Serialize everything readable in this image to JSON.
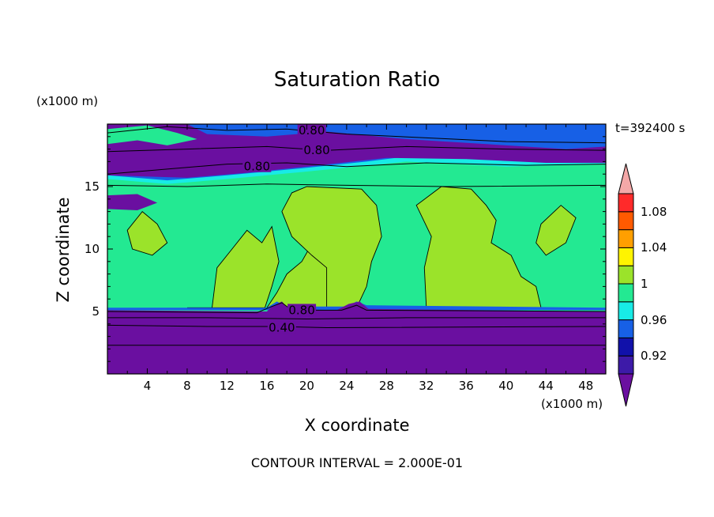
{
  "chart_data": {
    "type": "contour",
    "title": "Saturation Ratio",
    "xlabel": "X coordinate",
    "ylabel": "Z coordinate",
    "x_units": "(x1000 m)",
    "z_units": "(x1000 m)",
    "time_label": "t=392400 s",
    "footer": "CONTOUR INTERVAL = 2.000E-01",
    "xlim": [
      0,
      50
    ],
    "ylim": [
      0,
      20
    ],
    "x_ticks": [
      "4",
      "8",
      "12",
      "16",
      "20",
      "24",
      "28",
      "32",
      "36",
      "40",
      "44",
      "48"
    ],
    "y_ticks": [
      "5",
      "10",
      "15"
    ],
    "contour_labels": [
      {
        "text": "0.80",
        "x": 20.5,
        "z": 19.5
      },
      {
        "text": "0.80",
        "x": 21.0,
        "z": 17.9
      },
      {
        "text": "0.80",
        "x": 15.0,
        "z": 16.6
      },
      {
        "text": "0.80",
        "x": 19.5,
        "z": 5.1
      },
      {
        "text": "0.40",
        "x": 17.5,
        "z": 3.7
      }
    ],
    "colorbar": {
      "labels": [
        "1.08",
        "1.04",
        "1",
        "0.96",
        "0.92"
      ],
      "levels": [
        {
          "from": null,
          "to": 0.9,
          "color": "#6a0fa0"
        },
        {
          "from": 0.9,
          "to": 0.92,
          "color": "#3d1aa8"
        },
        {
          "from": 0.92,
          "to": 0.94,
          "color": "#1111aa"
        },
        {
          "from": 0.94,
          "to": 0.96,
          "color": "#1760e6"
        },
        {
          "from": 0.96,
          "to": 0.98,
          "color": "#18ebe6"
        },
        {
          "from": 0.98,
          "to": 1.0,
          "color": "#23e992"
        },
        {
          "from": 1.0,
          "to": 1.02,
          "color": "#9be32a"
        },
        {
          "from": 1.02,
          "to": 1.04,
          "color": "#fff400"
        },
        {
          "from": 1.04,
          "to": 1.06,
          "color": "#ff9f00"
        },
        {
          "from": 1.06,
          "to": 1.08,
          "color": "#ff5a00"
        },
        {
          "from": 1.08,
          "to": 1.1,
          "color": "#ff2a2a"
        },
        {
          "from": 1.1,
          "to": null,
          "color": "#f4a8a8"
        }
      ]
    }
  }
}
